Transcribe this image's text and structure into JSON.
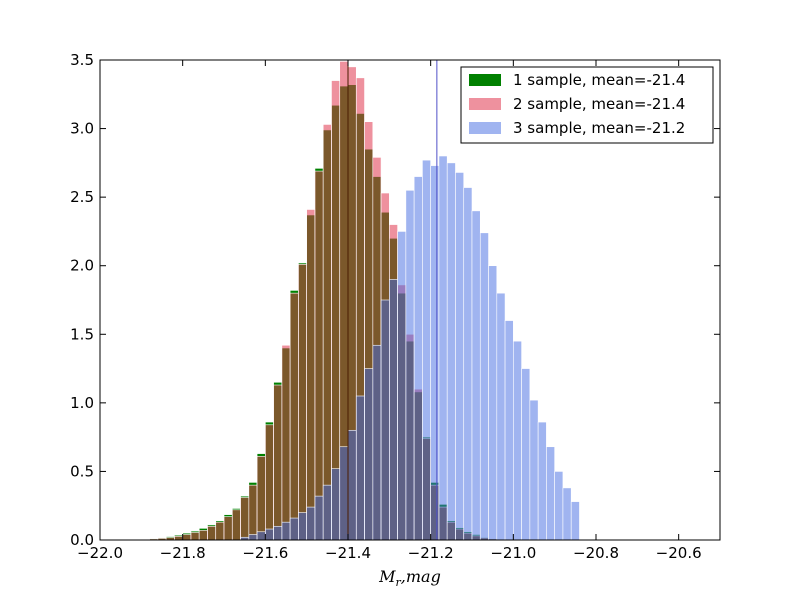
{
  "chart_data": {
    "type": "bar",
    "xlabel": "M_r,mag",
    "xlabel_main": "M",
    "xlabel_sub": "r",
    "xlabel_rest": ",mag",
    "ylabel": "",
    "xlim": [
      -22.0,
      -20.5
    ],
    "ylim": [
      0.0,
      3.5
    ],
    "xticks": [
      {
        "value": -22.0,
        "label": "−22.0"
      },
      {
        "value": -21.8,
        "label": "−21.8"
      },
      {
        "value": -21.6,
        "label": "−21.6"
      },
      {
        "value": -21.4,
        "label": "−21.4"
      },
      {
        "value": -21.2,
        "label": "−21.2"
      },
      {
        "value": -21.0,
        "label": "−21.0"
      },
      {
        "value": -20.8,
        "label": "−20.8"
      },
      {
        "value": -20.6,
        "label": "−20.6"
      }
    ],
    "yticks": [
      {
        "value": 0.0,
        "label": "0.0"
      },
      {
        "value": 0.5,
        "label": "0.5"
      },
      {
        "value": 1.0,
        "label": "1.0"
      },
      {
        "value": 1.5,
        "label": "1.5"
      },
      {
        "value": 2.0,
        "label": "2.0"
      },
      {
        "value": 2.5,
        "label": "2.5"
      },
      {
        "value": 3.0,
        "label": "3.0"
      },
      {
        "value": 3.5,
        "label": "3.5"
      }
    ],
    "bin_width": 0.02,
    "legend_position": "upper right",
    "series": [
      {
        "name": "1 sample, mean=-21.4",
        "color": "#008000",
        "alpha": 1.0,
        "mean": -21.4,
        "x": [
          -21.9,
          -21.88,
          -21.86,
          -21.84,
          -21.82,
          -21.8,
          -21.78,
          -21.76,
          -21.74,
          -21.72,
          -21.7,
          -21.68,
          -21.66,
          -21.64,
          -21.62,
          -21.6,
          -21.58,
          -21.56,
          -21.54,
          -21.52,
          -21.5,
          -21.48,
          -21.46,
          -21.44,
          -21.42,
          -21.4,
          -21.38,
          -21.36,
          -21.34,
          -21.32,
          -21.3,
          -21.28,
          -21.26,
          -21.24,
          -21.22,
          -21.2,
          -21.18,
          -21.16,
          -21.14,
          -21.12,
          -21.1,
          -21.08,
          -21.06
        ],
        "values": [
          0.005,
          0.01,
          0.015,
          0.025,
          0.035,
          0.05,
          0.065,
          0.085,
          0.11,
          0.14,
          0.185,
          0.23,
          0.32,
          0.42,
          0.63,
          0.86,
          1.15,
          1.4,
          1.82,
          2.02,
          2.37,
          2.71,
          2.99,
          3.17,
          3.31,
          3.32,
          3.11,
          2.85,
          2.65,
          2.39,
          2.2,
          1.8,
          1.45,
          1.08,
          0.75,
          0.42,
          0.26,
          0.14,
          0.09,
          0.06,
          0.04,
          0.02,
          0.01
        ]
      },
      {
        "name": "2 sample, mean=-21.4",
        "color": "#e0364f",
        "alpha": 0.55,
        "mean": -21.4,
        "x": [
          -21.9,
          -21.88,
          -21.86,
          -21.84,
          -21.82,
          -21.8,
          -21.78,
          -21.76,
          -21.74,
          -21.72,
          -21.7,
          -21.68,
          -21.66,
          -21.64,
          -21.62,
          -21.6,
          -21.58,
          -21.56,
          -21.54,
          -21.52,
          -21.5,
          -21.48,
          -21.46,
          -21.44,
          -21.42,
          -21.4,
          -21.38,
          -21.36,
          -21.34,
          -21.32,
          -21.3,
          -21.28,
          -21.26,
          -21.24,
          -21.22,
          -21.2,
          -21.18,
          -21.16,
          -21.14,
          -21.12,
          -21.1,
          -21.08,
          -21.06
        ],
        "values": [
          0.005,
          0.008,
          0.012,
          0.018,
          0.027,
          0.04,
          0.055,
          0.07,
          0.1,
          0.13,
          0.17,
          0.22,
          0.31,
          0.4,
          0.61,
          0.84,
          1.13,
          1.42,
          1.8,
          2.01,
          2.41,
          2.69,
          3.03,
          3.35,
          3.49,
          3.45,
          3.37,
          3.05,
          2.79,
          2.53,
          2.3,
          1.86,
          1.5,
          1.1,
          0.74,
          0.4,
          0.24,
          0.13,
          0.08,
          0.05,
          0.03,
          0.015,
          0.008
        ]
      },
      {
        "name": "3 sample, mean=-21.2",
        "color": "#4169e1",
        "alpha": 0.5,
        "mean": -21.18,
        "x": [
          -21.66,
          -21.64,
          -21.62,
          -21.6,
          -21.58,
          -21.56,
          -21.54,
          -21.52,
          -21.5,
          -21.48,
          -21.46,
          -21.44,
          -21.42,
          -21.4,
          -21.38,
          -21.36,
          -21.34,
          -21.32,
          -21.3,
          -21.28,
          -21.26,
          -21.24,
          -21.22,
          -21.2,
          -21.18,
          -21.16,
          -21.14,
          -21.12,
          -21.1,
          -21.08,
          -21.06,
          -21.04,
          -21.02,
          -21.0,
          -20.98,
          -20.96,
          -20.94,
          -20.92,
          -20.9,
          -20.88,
          -20.86
        ],
        "values": [
          0.02,
          0.04,
          0.06,
          0.08,
          0.1,
          0.13,
          0.16,
          0.2,
          0.24,
          0.32,
          0.4,
          0.52,
          0.68,
          0.8,
          1.05,
          1.25,
          1.42,
          1.75,
          1.9,
          2.25,
          2.55,
          2.65,
          2.77,
          2.73,
          2.8,
          2.75,
          2.68,
          2.57,
          2.4,
          2.24,
          2.0,
          1.8,
          1.6,
          1.45,
          1.25,
          1.02,
          0.86,
          0.68,
          0.5,
          0.38,
          0.28
        ]
      }
    ],
    "vlines": [
      {
        "x": -21.4,
        "color": "#4a1c00"
      },
      {
        "x": -21.185,
        "color": "#5050c8"
      }
    ]
  }
}
